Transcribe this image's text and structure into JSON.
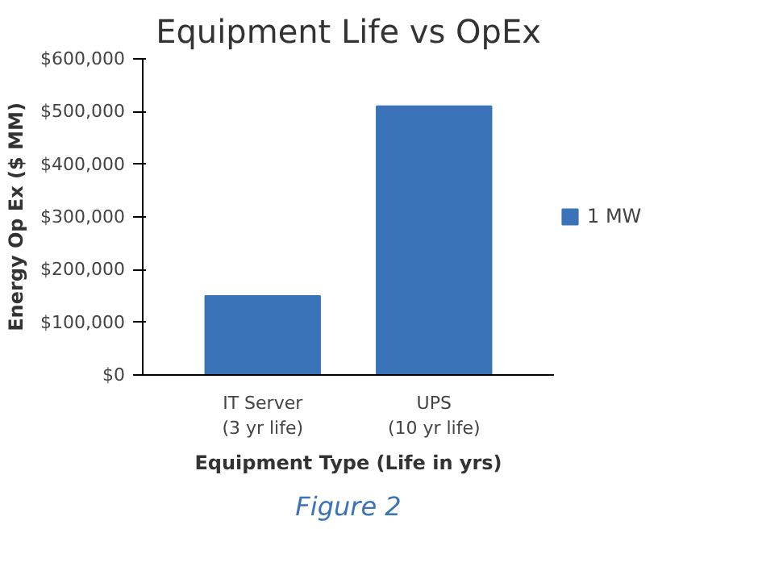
{
  "chart_data": {
    "type": "bar",
    "title": "Equipment Life vs OpEx",
    "xlabel": "Equipment Type (Life in yrs)",
    "ylabel": "Energy Op Ex ($ MM)",
    "categories": [
      "IT Server\n(3 yr life)",
      "UPS\n(10 yr life)"
    ],
    "series": [
      {
        "name": "1 MW",
        "color": "#3a73b8",
        "values": [
          150000,
          510000
        ]
      }
    ],
    "ylim": [
      0,
      600000
    ],
    "yticks": [
      {
        "value": 0,
        "label": "$0"
      },
      {
        "value": 100000,
        "label": "$100,000"
      },
      {
        "value": 200000,
        "label": "$200,000"
      },
      {
        "value": 300000,
        "label": "$300,000"
      },
      {
        "value": 400000,
        "label": "$400,000"
      },
      {
        "value": 500000,
        "label": "$500,000"
      },
      {
        "value": 600000,
        "label": "$600,000"
      }
    ],
    "legend": "right",
    "annotations": [
      "Figure 2"
    ]
  }
}
